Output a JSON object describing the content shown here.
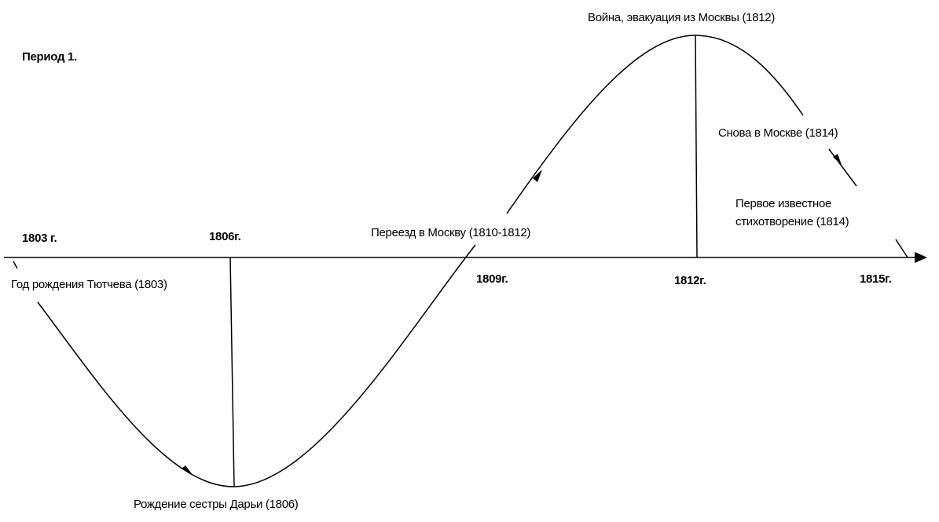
{
  "title": "Период 1.",
  "years": [
    "1803 г.",
    "1806г.",
    "1809г.",
    "1812г.",
    "1815г."
  ],
  "events": [
    {
      "label": "Год рождения Тютчева (1803)"
    },
    {
      "label": "Рождение сестры Дарьи (1806)"
    },
    {
      "label": "Переезд в Москву (1810-1812)"
    },
    {
      "label": "Война, эвакуация из Москвы (1812)"
    },
    {
      "label": "Снова в Москве (1814)"
    },
    {
      "lines": [
        "Первое известное",
        "стихотворение  (1814)"
      ]
    }
  ]
}
